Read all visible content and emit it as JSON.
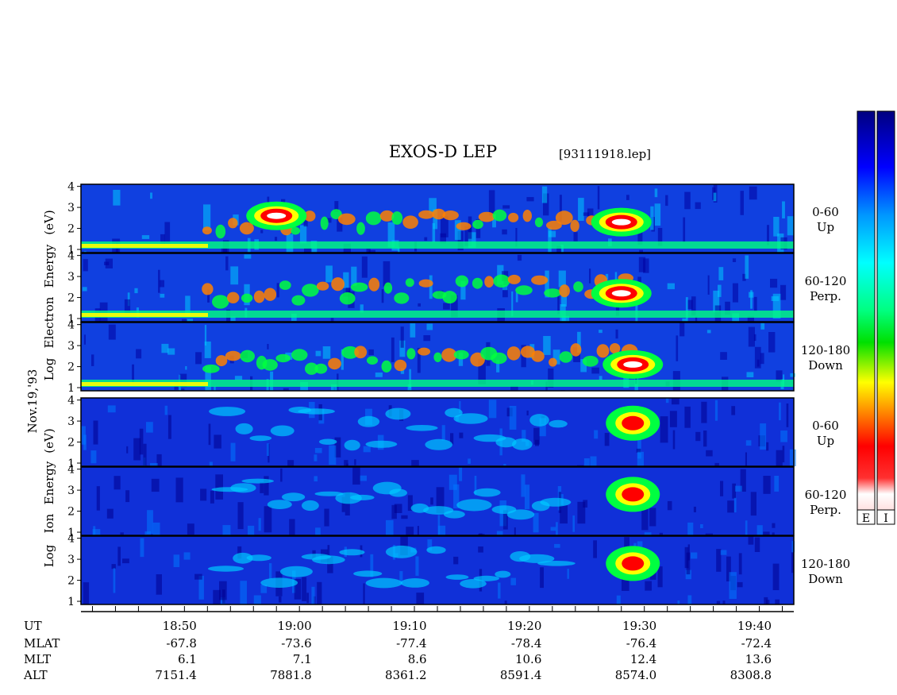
{
  "title": "EXOS-D LEP",
  "file_tag": "[93111918.lep]",
  "date_label": "Nov.19,'93",
  "colorbar_labels": [
    "E",
    "I"
  ],
  "electron_axis_label": [
    "Electron",
    "Energy",
    "(eV)"
  ],
  "electron_log_label": "Log",
  "ion_axis_label": [
    "Energy",
    "(eV)"
  ],
  "ion_prefix_labels": [
    "Log",
    "Ion"
  ],
  "panels": [
    {
      "species": "Electron",
      "pitch": "0-60",
      "direction": "Up"
    },
    {
      "species": "Electron",
      "pitch": "60-120",
      "direction": "Perp."
    },
    {
      "species": "Electron",
      "pitch": "120-180",
      "direction": "Down"
    },
    {
      "species": "Ion",
      "pitch": "0-60",
      "direction": "Up"
    },
    {
      "species": "Ion",
      "pitch": "60-120",
      "direction": "Perp."
    },
    {
      "species": "Ion",
      "pitch": "120-180",
      "direction": "Down"
    }
  ],
  "y_ticks": [
    "1",
    "2",
    "3",
    "4"
  ],
  "orbit_table": {
    "row_labels": [
      "UT",
      "MLAT",
      "MLT",
      "ALT"
    ],
    "columns": [
      {
        "UT": "18:50",
        "MLAT": "-67.8",
        "MLT": "6.1",
        "ALT": "7151.4"
      },
      {
        "UT": "19:00",
        "MLAT": "-73.6",
        "MLT": "7.1",
        "ALT": "7881.8"
      },
      {
        "UT": "19:10",
        "MLAT": "-77.4",
        "MLT": "8.6",
        "ALT": "8361.2"
      },
      {
        "UT": "19:20",
        "MLAT": "-78.4",
        "MLT": "10.6",
        "ALT": "8591.4"
      },
      {
        "UT": "19:30",
        "MLAT": "-76.4",
        "MLT": "12.4",
        "ALT": "8574.0"
      },
      {
        "UT": "19:40",
        "MLAT": "-72.4",
        "MLT": "13.6",
        "ALT": "8308.8"
      }
    ]
  },
  "chart_data": {
    "type": "heatmap",
    "title": "EXOS-D LEP",
    "x_unit": "UT",
    "x_range": [
      "18:42",
      "19:44"
    ],
    "x_ticks": [
      "18:50",
      "19:00",
      "19:10",
      "19:20",
      "19:30",
      "19:40"
    ],
    "y_range": [
      0.85,
      4.1
    ],
    "y_ticks": [
      1,
      2,
      3,
      4
    ],
    "colormap": [
      "#000080",
      "#0000ff",
      "#00c8ff",
      "#00ff80",
      "#00ff00",
      "#ffff00",
      "#ff8000",
      "#ff0000",
      "#ffffff"
    ],
    "features": [
      {
        "panel": 0,
        "ut": "19:29",
        "log_energy": 2.3,
        "level": "max"
      },
      {
        "panel": 0,
        "ut": "18:59",
        "log_energy": 2.6,
        "level": "max"
      },
      {
        "panel": 1,
        "ut": "19:29",
        "log_energy": 2.2,
        "level": "max"
      },
      {
        "panel": 2,
        "ut": "19:30",
        "log_energy": 2.1,
        "level": "max"
      },
      {
        "panel": 3,
        "ut": "19:30",
        "log_energy": 2.9,
        "level": "high"
      },
      {
        "panel": 4,
        "ut": "19:30",
        "log_energy": 2.8,
        "level": "high"
      },
      {
        "panel": 5,
        "ut": "19:30",
        "log_energy": 2.8,
        "level": "high"
      }
    ]
  }
}
